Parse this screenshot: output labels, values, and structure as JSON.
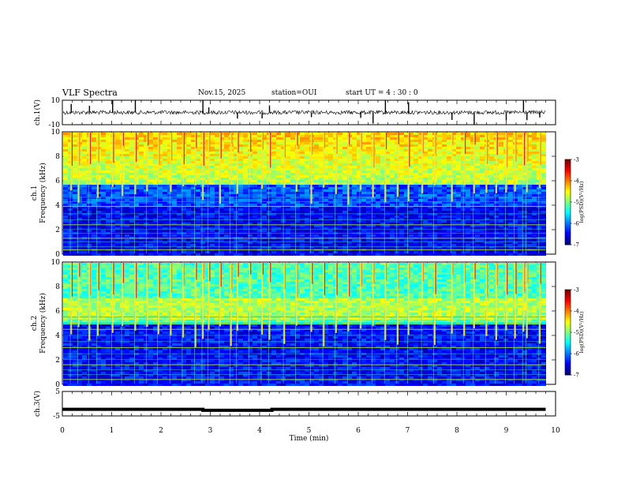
{
  "header": {
    "title": "VLF Spectra",
    "date": "Nov.15, 2025",
    "station": "station=OUI",
    "start": "start UT =  4 : 30 : 0"
  },
  "chart_data": [
    {
      "type": "line",
      "panel": "ch1-waveform",
      "ylabel": "ch.1(V)",
      "ylim": [
        -10,
        10
      ],
      "yticks": [
        "10",
        "-10"
      ],
      "xlim": [
        0,
        10
      ],
      "series": [
        {
          "values": "baseline ~0 V with impulsive spikes"
        }
      ],
      "spike_times_min": [
        0.18,
        0.55,
        1.02,
        1.48,
        2.85,
        2.97,
        3.55,
        4.05,
        4.2,
        5.05,
        6.05,
        6.3,
        6.55,
        7.02,
        7.9,
        8.35,
        9.0,
        9.35,
        9.42,
        9.68
      ],
      "color": "#000000"
    },
    {
      "type": "heatmap",
      "panel": "ch1-spectrogram",
      "ylabel": "ch.1\nFrequency (kHz)",
      "ylim": [
        0,
        10
      ],
      "yticks": [
        "0",
        "2",
        "4",
        "6",
        "8",
        "10"
      ],
      "xlim": [
        0,
        9.8
      ],
      "colorbar": {
        "label": "log(PSD)(V²/Hz)",
        "range": [
          -7,
          -3
        ],
        "ticks": [
          "-3",
          "-4",
          "-5",
          "-6",
          "-7"
        ]
      },
      "band_edge_khz": 5.8,
      "tones_khz": [
        0.35,
        0.6,
        1.0,
        1.3,
        1.7,
        2.05,
        2.4,
        2.8,
        3.3,
        3.9,
        4.3,
        4.65
      ],
      "sferic_times_min": [
        0.18,
        0.33,
        0.55,
        0.72,
        1.02,
        1.22,
        1.48,
        1.72,
        1.95,
        2.2,
        2.45,
        2.7,
        2.85,
        2.97,
        3.2,
        3.42,
        3.55,
        3.8,
        4.05,
        4.2,
        4.5,
        4.75,
        5.05,
        5.3,
        5.55,
        5.8,
        6.05,
        6.3,
        6.55,
        6.8,
        7.02,
        7.3,
        7.55,
        7.9,
        8.15,
        8.35,
        8.6,
        8.8,
        9.0,
        9.18,
        9.35,
        9.42,
        9.68
      ]
    },
    {
      "type": "heatmap",
      "panel": "ch2-spectrogram",
      "ylabel": "ch.2\nFrequency (kHz)",
      "ylim": [
        0,
        10
      ],
      "yticks": [
        "0",
        "2",
        "4",
        "6",
        "8",
        "10"
      ],
      "xlim": [
        0,
        9.8
      ],
      "colorbar": {
        "label": "log(PSD)(V²/Hz)",
        "range": [
          -7,
          -3
        ],
        "ticks": [
          "-3",
          "-4",
          "-5",
          "-6",
          "-7"
        ]
      },
      "band_center_khz": 6.3,
      "tones_khz": [
        0.4,
        0.8,
        1.2,
        1.6,
        2.05,
        2.5,
        3.0,
        3.5,
        4.0,
        4.5,
        5.0,
        5.5
      ],
      "sferic_times_min": [
        0.18,
        0.33,
        0.55,
        0.72,
        1.02,
        1.22,
        1.48,
        1.72,
        1.95,
        2.2,
        2.45,
        2.7,
        2.85,
        2.97,
        3.2,
        3.42,
        3.55,
        3.8,
        4.05,
        4.2,
        4.5,
        4.75,
        5.05,
        5.3,
        5.55,
        5.8,
        6.05,
        6.3,
        6.55,
        6.8,
        7.02,
        7.3,
        7.55,
        7.9,
        8.15,
        8.35,
        8.6,
        8.8,
        9.0,
        9.18,
        9.35,
        9.42,
        9.68
      ]
    },
    {
      "type": "line",
      "panel": "ch3-waveform",
      "ylabel": "ch.3(V)",
      "ylim": [
        -5,
        5
      ],
      "yticks": [
        "5",
        "-5"
      ],
      "xlim": [
        0,
        10
      ],
      "xlabel": "Time (min)",
      "xticks": [
        "0",
        "1",
        "2",
        "3",
        "4",
        "5",
        "6",
        "7",
        "8",
        "9",
        "10"
      ],
      "series": [
        {
          "x": [
            0,
            2.85,
            2.85,
            4.25,
            4.25,
            9.8
          ],
          "y": [
            -2.3,
            -2.3,
            -2.7,
            -2.7,
            -2.3,
            -2.3
          ]
        }
      ],
      "color": "#000000"
    }
  ]
}
